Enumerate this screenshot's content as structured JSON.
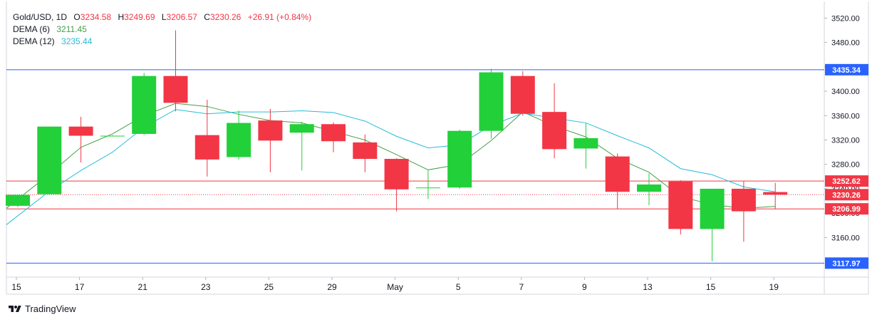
{
  "legend": {
    "symbol": "Gold/USD, 1D",
    "open_label": "O",
    "open": "3234.58",
    "high_label": "H",
    "high": "3249.69",
    "low_label": "L",
    "low": "3206.57",
    "close_label": "C",
    "close": "3230.26",
    "change": "+26.91 (+0.84%)",
    "dema6_label": "DEMA (6)",
    "dema6_value": "3211.45",
    "dema12_label": "DEMA (12)",
    "dema12_value": "3235.44"
  },
  "footer": {
    "brand": "TradingView"
  },
  "colors": {
    "up": "#22d03a",
    "down": "#f23645",
    "dema6": "#43a047",
    "dema12": "#26bcd9",
    "blue_line": "#2962ff",
    "red_line": "#f23645"
  },
  "chart_data": {
    "type": "candlestick",
    "symbol": "Gold/USD",
    "timeframe": "1D",
    "x_tick_labels": [
      "15",
      "17",
      "21",
      "23",
      "25",
      "29",
      "May",
      "5",
      "7",
      "9",
      "13",
      "15",
      "19"
    ],
    "y_tick_labels": [
      "3520.00",
      "3480.00",
      "3440.00",
      "3400.00",
      "3360.00",
      "3320.00",
      "3280.00",
      "3240.00",
      "3200.00",
      "3160.00"
    ],
    "ylim": [
      3095,
      3538
    ],
    "candles": [
      {
        "date": "Apr 15",
        "open": 3212,
        "high": 3230,
        "low": 3210,
        "close": 3230
      },
      {
        "date": "Apr 16",
        "open": 3231,
        "high": 3342,
        "low": 3230,
        "close": 3342
      },
      {
        "date": "Apr 17",
        "open": 3342,
        "high": 3358,
        "low": 3283,
        "close": 3327
      },
      {
        "date": "Apr 18",
        "open": 3327,
        "high": 3328,
        "low": 3326,
        "close": 3327
      },
      {
        "date": "Apr 21",
        "open": 3330,
        "high": 3430,
        "low": 3328,
        "close": 3425
      },
      {
        "date": "Apr 22",
        "open": 3425,
        "high": 3500,
        "low": 3367,
        "close": 3381
      },
      {
        "date": "Apr 23",
        "open": 3328,
        "high": 3386,
        "low": 3260,
        "close": 3288
      },
      {
        "date": "Apr 24",
        "open": 3292,
        "high": 3368,
        "low": 3288,
        "close": 3348
      },
      {
        "date": "Apr 25",
        "open": 3352,
        "high": 3371,
        "low": 3267,
        "close": 3319
      },
      {
        "date": "Apr 28",
        "open": 3332,
        "high": 3350,
        "low": 3270,
        "close": 3346
      },
      {
        "date": "Apr 29",
        "open": 3346,
        "high": 3349,
        "low": 3300,
        "close": 3318
      },
      {
        "date": "Apr 30",
        "open": 3316,
        "high": 3329,
        "low": 3267,
        "close": 3289
      },
      {
        "date": "May 1",
        "open": 3289,
        "high": 3290,
        "low": 3203,
        "close": 3239
      },
      {
        "date": "May 2",
        "open": 3241,
        "high": 3270,
        "low": 3223,
        "close": 3242
      },
      {
        "date": "May 5",
        "open": 3242,
        "high": 3337,
        "low": 3240,
        "close": 3335
      },
      {
        "date": "May 6",
        "open": 3335,
        "high": 3437,
        "low": 3322,
        "close": 3431
      },
      {
        "date": "May 7",
        "open": 3425,
        "high": 3433,
        "low": 3360,
        "close": 3363
      },
      {
        "date": "May 8",
        "open": 3366,
        "high": 3413,
        "low": 3290,
        "close": 3305
      },
      {
        "date": "May 9",
        "open": 3306,
        "high": 3347,
        "low": 3273,
        "close": 3323
      },
      {
        "date": "May 12",
        "open": 3293,
        "high": 3298,
        "low": 3207,
        "close": 3235
      },
      {
        "date": "May 13",
        "open": 3235,
        "high": 3265,
        "low": 3213,
        "close": 3247
      },
      {
        "date": "May 14",
        "open": 3252,
        "high": 3254,
        "low": 3165,
        "close": 3174
      },
      {
        "date": "May 15",
        "open": 3174,
        "high": 3240,
        "low": 3121,
        "close": 3240
      },
      {
        "date": "May 16",
        "open": 3240,
        "high": 3252,
        "low": 3153,
        "close": 3203
      },
      {
        "date": "May 19",
        "open": 3234.58,
        "high": 3249.69,
        "low": 3206.57,
        "close": 3230.26
      }
    ],
    "indicators": [
      {
        "name": "DEMA (6)",
        "color": "#43a047",
        "values": [
          3208,
          3264,
          3308,
          3330,
          3360,
          3380,
          3375,
          3362,
          3352,
          3348,
          3334,
          3320,
          3296,
          3271,
          3280,
          3319,
          3366,
          3343,
          3325,
          3290,
          3267,
          3227,
          3214,
          3208,
          3211
        ]
      },
      {
        "name": "DEMA (12)",
        "color": "#26bcd9",
        "values": [
          3181,
          3236,
          3270,
          3300,
          3341,
          3370,
          3363,
          3366,
          3366,
          3368,
          3365,
          3351,
          3326,
          3307,
          3312,
          3344,
          3364,
          3356,
          3348,
          3327,
          3307,
          3273,
          3263,
          3243,
          3235
        ]
      }
    ],
    "horizontal_lines": [
      {
        "price": 3435.34,
        "label": "3435.34",
        "color": "#2962ff"
      },
      {
        "price": 3252.62,
        "label": "3252.62",
        "color": "#f23645"
      },
      {
        "price": 3230.26,
        "label": "3230.26",
        "color": "#f23645",
        "style": "dotted"
      },
      {
        "price": 3206.99,
        "label": "3206.99",
        "color": "#f23645"
      },
      {
        "price": 3117.97,
        "label": "3117.97",
        "color": "#2962ff"
      }
    ]
  }
}
